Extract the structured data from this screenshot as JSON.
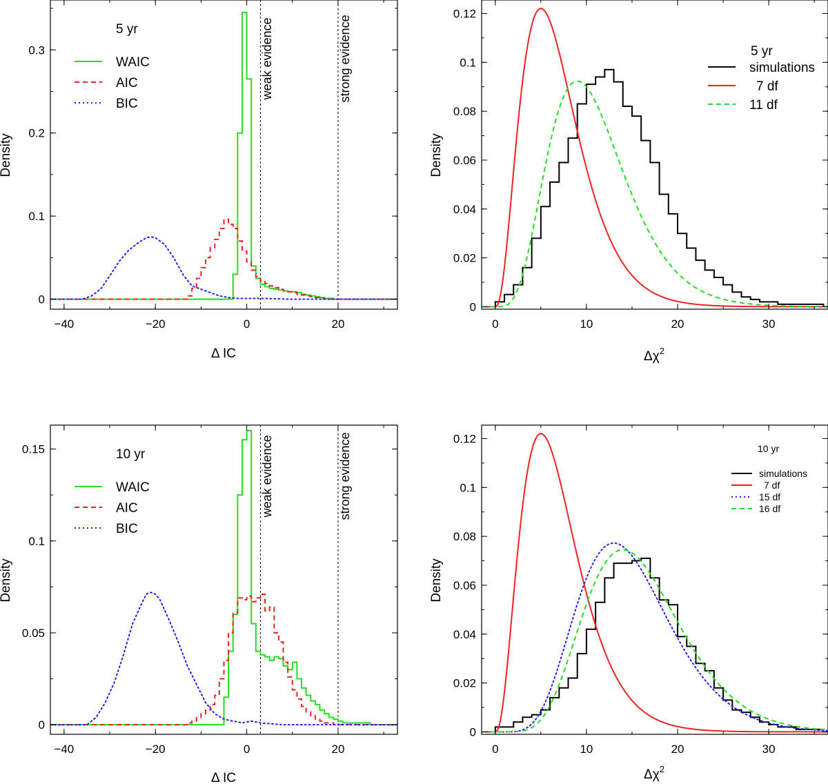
{
  "chart_data": [
    {
      "id": "p1",
      "type": "histogram",
      "annotation": "5 yr",
      "xlabel": "Δ IC",
      "ylabel": "Density",
      "xlim": [
        -43,
        33
      ],
      "ylim": [
        -0.012,
        0.36
      ],
      "xticks": [
        -40,
        -20,
        0,
        20
      ],
      "xtick_labels": [
        "−40",
        "−20",
        "0",
        "20"
      ],
      "yticks": [
        0,
        0.1,
        0.2,
        0.3
      ],
      "ytick_labels": [
        "0",
        "0.1",
        "0.2",
        "0.3"
      ],
      "vlines": [
        {
          "x": 3,
          "label": "weak evidence"
        },
        {
          "x": 20,
          "label": "strong evidence"
        }
      ],
      "series": [
        {
          "name": "WAIC",
          "color": "#22dd22",
          "style": "solid",
          "kind": "step",
          "x": [
            -43,
            -4,
            -3,
            -2,
            -1,
            0,
            1,
            2,
            3,
            4,
            5,
            6,
            7,
            8,
            9,
            10,
            11,
            12,
            13,
            14,
            15,
            16,
            17,
            18,
            19,
            20,
            33
          ],
          "y": [
            0,
            0,
            0.03,
            0.2,
            0.345,
            0.265,
            0.04,
            0.025,
            0.018,
            0.015,
            0.013,
            0.012,
            0.011,
            0.01,
            0.009,
            0.009,
            0.008,
            0.006,
            0.005,
            0.004,
            0.003,
            0.002,
            0.001,
            0.001,
            0,
            0,
            0
          ]
        },
        {
          "name": "AIC",
          "color": "#ee2222",
          "style": "dashed",
          "kind": "step",
          "x": [
            -43,
            -14,
            -13,
            -12,
            -11,
            -10,
            -9,
            -8,
            -7,
            -6,
            -5,
            -4,
            -3,
            -2,
            -1,
            0,
            1,
            2,
            3,
            4,
            5,
            6,
            7,
            8,
            9,
            10,
            11,
            12,
            13,
            14,
            15,
            16,
            17,
            33
          ],
          "y": [
            0,
            0,
            0.004,
            0.013,
            0.025,
            0.038,
            0.05,
            0.062,
            0.072,
            0.085,
            0.096,
            0.09,
            0.085,
            0.07,
            0.058,
            0.045,
            0.035,
            0.027,
            0.022,
            0.019,
            0.016,
            0.014,
            0.012,
            0.01,
            0.009,
            0.008,
            0.006,
            0.005,
            0.004,
            0.003,
            0.002,
            0.001,
            0,
            0
          ]
        },
        {
          "name": "BIC",
          "color": "#2222ee",
          "style": "dotted",
          "kind": "line",
          "x": [
            -43,
            -36,
            -34,
            -32,
            -30,
            -28,
            -26,
            -24,
            -22,
            -21,
            -20,
            -18,
            -16,
            -14,
            -12,
            -10,
            -8,
            -6,
            -4,
            -2,
            0,
            3,
            10,
            33
          ],
          "y": [
            0,
            0,
            0.004,
            0.012,
            0.028,
            0.045,
            0.058,
            0.067,
            0.074,
            0.075,
            0.074,
            0.066,
            0.05,
            0.03,
            0.016,
            0.012,
            0.008,
            0.004,
            0.002,
            0.001,
            0.001,
            0.001,
            0,
            0
          ]
        }
      ]
    },
    {
      "id": "p2",
      "type": "histogram",
      "annotation": "5 yr",
      "xlabel": "Δχ",
      "xlabel_sup": "2",
      "ylabel": "Density",
      "xlim": [
        -1.5,
        36.5
      ],
      "ylim": [
        -0.001,
        0.1255
      ],
      "xticks": [
        0,
        10,
        20,
        30
      ],
      "xtick_labels": [
        "0",
        "10",
        "20",
        "30"
      ],
      "yticks": [
        0,
        0.02,
        0.04,
        0.06,
        0.08,
        0.1,
        0.12
      ],
      "ytick_labels": [
        "0",
        "0.02",
        "0.04",
        "0.06",
        "0.08",
        "0.1",
        "0.12"
      ],
      "series": [
        {
          "name": "simulations",
          "color": "#000000",
          "style": "solid",
          "kind": "hist",
          "bin_width": 1,
          "x0": 0,
          "y": [
            0.002,
            0.005,
            0.009,
            0.016,
            0.028,
            0.041,
            0.051,
            0.059,
            0.069,
            0.083,
            0.091,
            0.094,
            0.097,
            0.092,
            0.082,
            0.078,
            0.068,
            0.059,
            0.046,
            0.038,
            0.03,
            0.024,
            0.019,
            0.015,
            0.012,
            0.009,
            0.006,
            0.004,
            0.003,
            0.002,
            0.002,
            0.001,
            0.001,
            0.001,
            0.001,
            0.001
          ]
        },
        {
          "name": "7 df",
          "color": "#ee2222",
          "style": "solid",
          "kind": "chi2",
          "df": 7
        },
        {
          "name": "11 df",
          "color": "#22dd22",
          "style": "dashed",
          "kind": "chi2",
          "df": 11
        }
      ]
    },
    {
      "id": "p3",
      "type": "histogram",
      "annotation": "10 yr",
      "xlabel": "Δ IC",
      "ylabel": "Density",
      "xlim": [
        -43,
        33
      ],
      "ylim": [
        -0.0052,
        0.163
      ],
      "xticks": [
        -40,
        -20,
        0,
        20
      ],
      "xtick_labels": [
        "−40",
        "−20",
        "0",
        "20"
      ],
      "yticks": [
        0,
        0.05,
        0.1,
        0.15
      ],
      "ytick_labels": [
        "0",
        "0.05",
        "0.1",
        "0.15"
      ],
      "vlines": [
        {
          "x": 3,
          "label": "weak evidence"
        },
        {
          "x": 20,
          "label": "strong evidence"
        }
      ],
      "series": [
        {
          "name": "WAIC",
          "color": "#22dd22",
          "style": "solid",
          "kind": "step",
          "x": [
            -43,
            -6,
            -5,
            -4,
            -3,
            -2,
            -1,
            0,
            1,
            2,
            3,
            4,
            5,
            6,
            7,
            8,
            9,
            10,
            11,
            12,
            13,
            14,
            15,
            16,
            17,
            18,
            19,
            20,
            21,
            22,
            23,
            24,
            25,
            26,
            27,
            33
          ],
          "y": [
            0,
            0,
            0.015,
            0.04,
            0.06,
            0.125,
            0.155,
            0.16,
            0.055,
            0.04,
            0.038,
            0.037,
            0.035,
            0.037,
            0.036,
            0.032,
            0.03,
            0.034,
            0.025,
            0.02,
            0.016,
            0.013,
            0.011,
            0.008,
            0.006,
            0.004,
            0.003,
            0.002,
            0.001,
            0.001,
            0.001,
            0.001,
            0.001,
            0.001,
            0,
            0
          ]
        },
        {
          "name": "AIC",
          "color": "#ee2222",
          "style": "dashed",
          "kind": "step",
          "x": [
            -43,
            -14,
            -13,
            -12,
            -11,
            -10,
            -9,
            -8,
            -7,
            -6,
            -5,
            -4,
            -3,
            -2,
            -1,
            0,
            1,
            2,
            3,
            4,
            5,
            6,
            7,
            8,
            9,
            10,
            11,
            12,
            13,
            14,
            15,
            16,
            17,
            18,
            19,
            33
          ],
          "y": [
            0,
            0,
            0.001,
            0.002,
            0.004,
            0.006,
            0.008,
            0.011,
            0.016,
            0.025,
            0.035,
            0.05,
            0.061,
            0.069,
            0.068,
            0.07,
            0.067,
            0.069,
            0.071,
            0.062,
            0.064,
            0.05,
            0.045,
            0.034,
            0.026,
            0.019,
            0.014,
            0.01,
            0.007,
            0.005,
            0.003,
            0.002,
            0.001,
            0.001,
            0,
            0
          ]
        },
        {
          "name": "BIC",
          "color": "#2222ee",
          "style": "dotted",
          "kind": "line",
          "x": [
            -43,
            -35,
            -33,
            -31,
            -29,
            -27,
            -25,
            -23,
            -22,
            -21,
            -20,
            -19,
            -17,
            -15,
            -13,
            -11,
            -9,
            -7,
            -5,
            -3,
            -1,
            1,
            3,
            8,
            33
          ],
          "y": [
            0,
            0,
            0.004,
            0.012,
            0.023,
            0.038,
            0.055,
            0.066,
            0.071,
            0.072,
            0.071,
            0.068,
            0.057,
            0.045,
            0.032,
            0.022,
            0.012,
            0.006,
            0.003,
            0.002,
            0.001,
            0.002,
            0.001,
            0,
            0
          ]
        }
      ]
    },
    {
      "id": "p4",
      "type": "histogram",
      "annotation": "10 yr",
      "xlabel": "Δχ",
      "xlabel_sup": "2",
      "ylabel": "Density",
      "xlim": [
        -1.5,
        36.5
      ],
      "ylim": [
        -0.001,
        0.1255
      ],
      "xticks": [
        0,
        10,
        20,
        30
      ],
      "xtick_labels": [
        "0",
        "10",
        "20",
        "30"
      ],
      "yticks": [
        0,
        0.02,
        0.04,
        0.06,
        0.08,
        0.1,
        0.12
      ],
      "ytick_labels": [
        "0",
        "0.02",
        "0.04",
        "0.06",
        "0.08",
        "0.1",
        "0.12"
      ],
      "series": [
        {
          "name": "simulations",
          "color": "#000000",
          "style": "solid",
          "kind": "hist",
          "bin_width": 1,
          "x0": 0,
          "y": [
            0.002,
            0.002,
            0.004,
            0.006,
            0.007,
            0.009,
            0.014,
            0.018,
            0.022,
            0.032,
            0.042,
            0.053,
            0.063,
            0.069,
            0.069,
            0.07,
            0.071,
            0.063,
            0.054,
            0.052,
            0.039,
            0.035,
            0.028,
            0.025,
            0.018,
            0.013,
            0.009,
            0.008,
            0.006,
            0.004,
            0.003,
            0.002,
            0.002,
            0.001,
            0.001,
            0.001
          ]
        },
        {
          "name": "7 df",
          "color": "#ee2222",
          "style": "solid",
          "kind": "chi2",
          "df": 7
        },
        {
          "name": "15 df",
          "color": "#2222ee",
          "style": "dotted",
          "kind": "chi2",
          "df": 15
        },
        {
          "name": "16 df",
          "color": "#22dd22",
          "style": "dashed",
          "kind": "chi2",
          "df": 16
        }
      ]
    }
  ]
}
